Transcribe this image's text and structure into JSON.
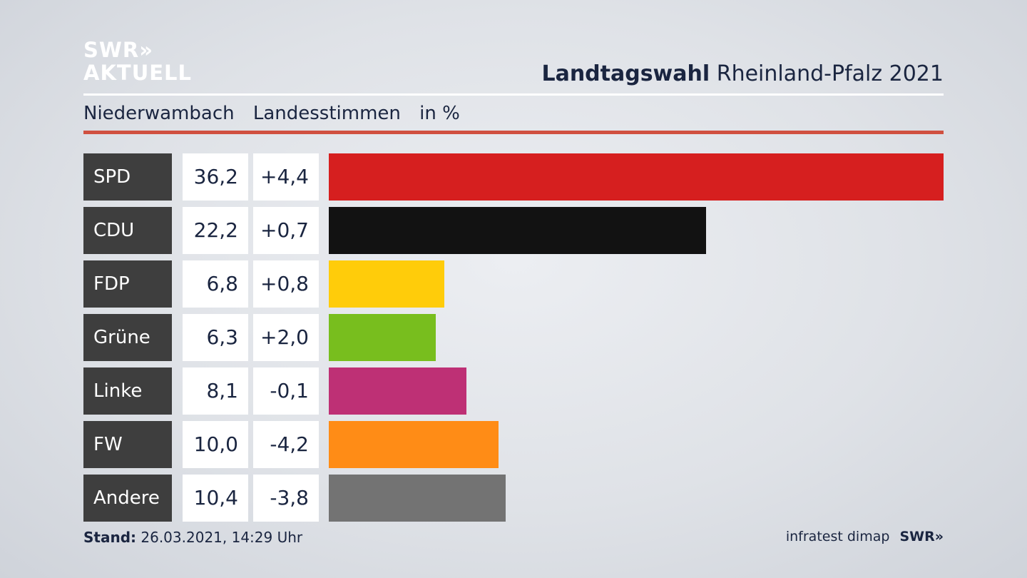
{
  "logo": {
    "line1": "SWR»",
    "line2": "AKTUELL"
  },
  "header": {
    "title_bold": "Landtagswahl",
    "title_rest": "Rheinland-Pfalz 2021"
  },
  "subtitle": {
    "place": "Niederwambach",
    "type": "Landesstimmen",
    "unit": "in %"
  },
  "chart_data": {
    "type": "bar",
    "orientation": "horizontal",
    "title": "Landtagswahl Rheinland-Pfalz 2021",
    "subtitle": "Niederwambach Landesstimmen in %",
    "categories": [
      "SPD",
      "CDU",
      "FDP",
      "Grüne",
      "Linke",
      "FW",
      "Andere"
    ],
    "values": [
      36.2,
      22.2,
      6.8,
      6.3,
      8.1,
      10.0,
      10.4
    ],
    "value_labels": [
      "36,2",
      "22,2",
      "6,8",
      "6,3",
      "8,1",
      "10,0",
      "10,4"
    ],
    "diff_labels": [
      "+4,4",
      "+0,7",
      "+0,8",
      "+2,0",
      "-0,1",
      "-4,2",
      "-3,8"
    ],
    "colors": [
      "#d61f1f",
      "#121212",
      "#ffcc0a",
      "#78be1e",
      "#be3075",
      "#ff8c16",
      "#737373"
    ],
    "xlim": [
      0,
      36.2
    ]
  },
  "footer": {
    "stand_label": "Stand:",
    "stand_value": "26.03.2021, 14:29 Uhr",
    "source": "infratest dimap",
    "brand": "SWR»"
  }
}
